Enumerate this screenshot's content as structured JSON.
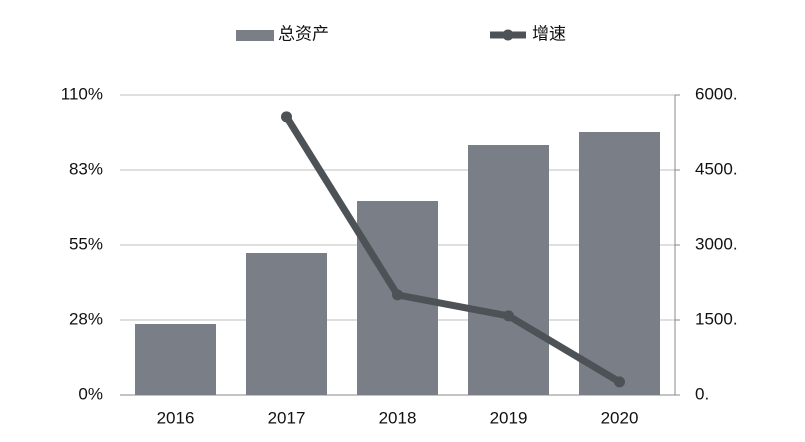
{
  "chart_data": {
    "type": "bar",
    "categories": [
      "2016",
      "2017",
      "2018",
      "2019",
      "2020"
    ],
    "series": [
      {
        "name": "总资产",
        "type": "bar",
        "axis": "y2",
        "color": "#7a7f87",
        "values": [
          1420,
          2840,
          3880,
          5000,
          5260
        ]
      },
      {
        "name": "增速",
        "type": "line",
        "color": "#4d5257",
        "values": [
          null,
          102,
          36.7,
          29,
          4.8
        ]
      }
    ],
    "ylim": [
      0,
      110
    ],
    "yticks": [
      {
        "value": 0,
        "label": "0%"
      },
      {
        "value": 27.5,
        "label": "28%"
      },
      {
        "value": 55,
        "label": "55%"
      },
      {
        "value": 82.5,
        "label": "83%"
      },
      {
        "value": 110,
        "label": "110%"
      }
    ],
    "y2lim": [
      0,
      6000
    ],
    "y2ticks": [
      {
        "value": 0,
        "label": "0."
      },
      {
        "value": 1500,
        "label": "1500."
      },
      {
        "value": 3000,
        "label": "3000."
      },
      {
        "value": 4500,
        "label": "4500."
      },
      {
        "value": 6000,
        "label": "6000."
      }
    ],
    "grid": true,
    "legend": "top"
  }
}
